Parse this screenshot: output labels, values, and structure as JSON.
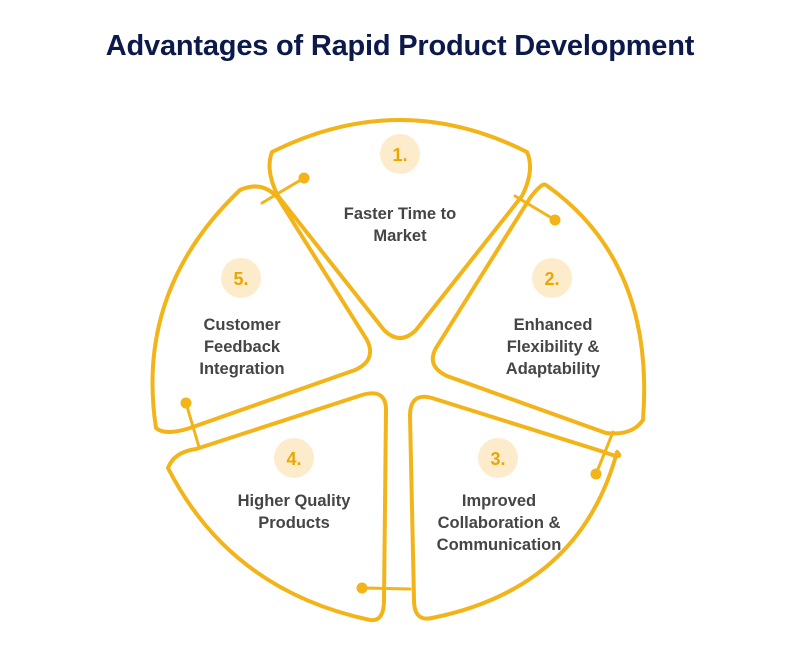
{
  "title": "Advantages of Rapid Product Development",
  "colors": {
    "title": "#0b1a4a",
    "outline": "#f2b418",
    "badge": "#fdeccc",
    "number": "#e9a800",
    "label": "#454545"
  },
  "segments": [
    {
      "number": "1.",
      "lines": [
        "Faster Time to",
        "Market"
      ]
    },
    {
      "number": "2.",
      "lines": [
        "Enhanced",
        "Flexibility &",
        "Adaptability"
      ]
    },
    {
      "number": "3.",
      "lines": [
        "Improved",
        "Collaboration &",
        "Communication"
      ]
    },
    {
      "number": "4.",
      "lines": [
        "Higher Quality",
        "Products"
      ]
    },
    {
      "number": "5.",
      "lines": [
        "Customer",
        "Feedback",
        "Integration"
      ]
    }
  ]
}
